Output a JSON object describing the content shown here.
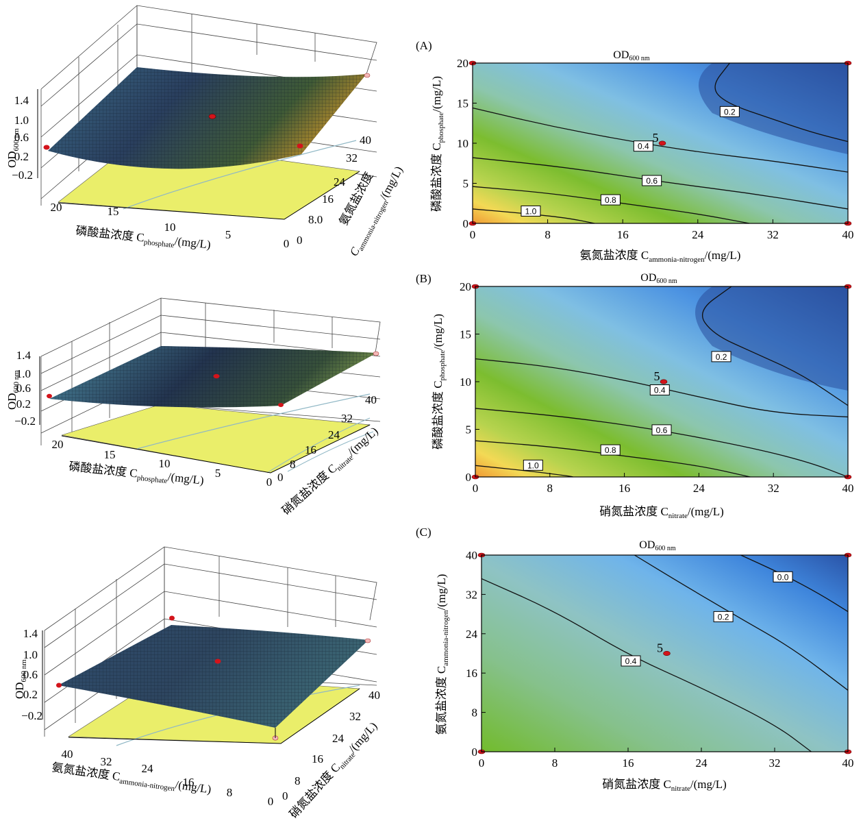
{
  "chart_data": [
    {
      "type": "surface",
      "zlabel_main": "OD",
      "zlabel_sub": "600 nm",
      "z_ticks": [
        "1.4",
        "1.0",
        "0.6",
        "0.2",
        "−0.2"
      ],
      "x_label_main": "磷酸盐浓度 C",
      "x_label_sub": "phosphate",
      "x_label_unit": "/(mg/L)",
      "x_ticks": [
        "20",
        "15",
        "10",
        "5",
        "0"
      ],
      "y_label_main": "氨氮盐浓度",
      "y_label_sub": "ammonia-nitrogen",
      "y_label_unit": "/(mg/L)",
      "y_label_c": "C",
      "y_ticks": [
        "0",
        "8.0",
        "16",
        "24",
        "32",
        "40"
      ]
    },
    {
      "type": "surface",
      "zlabel_main": "OD",
      "zlabel_sub": "600 nm",
      "z_ticks": [
        "1.4",
        "1.0",
        "0.6",
        "0.2",
        "−0.2"
      ],
      "x_label_main": "磷酸盐浓度 C",
      "x_label_sub": "phosphate",
      "x_label_unit": "/(mg/L)",
      "x_ticks": [
        "20",
        "15",
        "10",
        "5",
        "0"
      ],
      "y_label_main": "硝氮盐浓度 C",
      "y_label_sub": "nitrate",
      "y_label_unit": "/(mg/L)",
      "y_ticks": [
        "0",
        "8",
        "16",
        "24",
        "32",
        "40"
      ]
    },
    {
      "type": "surface",
      "zlabel_main": "OD",
      "zlabel_sub": "600 nm",
      "z_ticks": [
        "1.4",
        "1.0",
        "0.6",
        "0.2",
        "−0.2"
      ],
      "x_label_main": "氨氮盐浓度 C",
      "x_label_sub": "ammonia-nitrogen",
      "x_label_unit": "/(mg/L)",
      "x_ticks": [
        "40",
        "32",
        "24",
        "16",
        "8",
        "0"
      ],
      "y_label_main": "硝氮盐浓度 C",
      "y_label_sub": "nitrate",
      "y_label_unit": "/(mg/L)",
      "y_ticks": [
        "0",
        "8",
        "16",
        "24",
        "32",
        "40"
      ]
    },
    {
      "type": "contour",
      "panel": "(A)",
      "title_main": "OD",
      "title_sub": "600 nm",
      "xlabel_main": "氨氮盐浓度 C",
      "xlabel_sub": "ammonia-nitrogen",
      "xlabel_unit": "/(mg/L)",
      "ylabel_main": "磷酸盐浓度 C",
      "ylabel_sub": "phosphate",
      "ylabel_unit": "/(mg/L)",
      "xlim": [
        0,
        40
      ],
      "ylim": [
        0,
        20
      ],
      "x_ticks": [
        "0",
        "8",
        "16",
        "24",
        "32",
        "40"
      ],
      "y_ticks": [
        "0",
        "5",
        "10",
        "15",
        "20"
      ],
      "center_label": "5",
      "center": [
        20,
        10
      ],
      "contours": [
        {
          "label": "1.0",
          "points": [
            [
              0,
              1.8
            ],
            [
              5,
              1.3
            ],
            [
              10,
              0.7
            ],
            [
              13,
              0
            ]
          ],
          "label_at": [
            6.2,
            1.5
          ]
        },
        {
          "label": "0.8",
          "points": [
            [
              0,
              4.6
            ],
            [
              8,
              3.8
            ],
            [
              16,
              2.5
            ],
            [
              24,
              1.2
            ],
            [
              29.5,
              0
            ]
          ],
          "label_at": [
            14.7,
            2.9
          ]
        },
        {
          "label": "0.6",
          "points": [
            [
              0,
              8.2
            ],
            [
              10,
              7.0
            ],
            [
              20,
              5.2
            ],
            [
              30,
              3.7
            ],
            [
              40,
              1.8
            ]
          ],
          "label_at": [
            19.1,
            5.3
          ]
        },
        {
          "label": "0.4",
          "points": [
            [
              0,
              14.4
            ],
            [
              8,
              12.2
            ],
            [
              16,
              10.4
            ],
            [
              24,
              8.9
            ],
            [
              32,
              7.8
            ],
            [
              40,
              6.4
            ]
          ],
          "label_at": [
            18.2,
            9.6
          ]
        },
        {
          "label": "0.2",
          "points": [
            [
              27.4,
              20
            ],
            [
              25.4,
              17
            ],
            [
              27,
              15
            ],
            [
              32,
              13.0
            ],
            [
              36,
              11.4
            ],
            [
              40,
              10.2
            ]
          ],
          "label_at": [
            27.4,
            13.9
          ]
        }
      ]
    },
    {
      "type": "contour",
      "panel": "(B)",
      "title_main": "OD",
      "title_sub": "600 nm",
      "xlabel_main": "硝氮盐浓度 C",
      "xlabel_sub": "nitrate",
      "xlabel_unit": "/(mg/L)",
      "ylabel_main": "磷酸盐浓度 C",
      "ylabel_sub": "phosphate",
      "ylabel_unit": "/(mg/L)",
      "xlim": [
        0,
        40
      ],
      "ylim": [
        0,
        20
      ],
      "x_ticks": [
        "0",
        "8",
        "16",
        "24",
        "32",
        "40"
      ],
      "y_ticks": [
        "0",
        "5",
        "10",
        "15",
        "20"
      ],
      "center_label": "5",
      "center": [
        20,
        10
      ],
      "contours": [
        {
          "label": "1.0",
          "points": [
            [
              0,
              1.2
            ],
            [
              6,
              0.6
            ],
            [
              10,
              0.1
            ],
            [
              10.5,
              0
            ]
          ],
          "label_at": [
            6.2,
            1.2
          ]
        },
        {
          "label": "0.8",
          "points": [
            [
              0,
              3.8
            ],
            [
              8,
              3.2
            ],
            [
              16,
              2.2
            ],
            [
              24,
              1.2
            ],
            [
              29.5,
              0
            ]
          ],
          "label_at": [
            14.5,
            2.8
          ]
        },
        {
          "label": "0.6",
          "points": [
            [
              0,
              7.2
            ],
            [
              10,
              6.3
            ],
            [
              20,
              4.9
            ],
            [
              30,
              3.0
            ],
            [
              36,
              1.5
            ],
            [
              40,
              0
            ]
          ],
          "label_at": [
            20,
            4.9
          ]
        },
        {
          "label": "0.4",
          "points": [
            [
              0,
              12.4
            ],
            [
              8,
              11.6
            ],
            [
              16,
              10.2
            ],
            [
              24,
              8.4
            ],
            [
              32,
              6.7
            ],
            [
              40,
              6.3
            ]
          ],
          "label_at": [
            19.8,
            9.1
          ]
        },
        {
          "label": "0.2",
          "points": [
            [
              27.5,
              20
            ],
            [
              23.8,
              17.4
            ],
            [
              25.5,
              15
            ],
            [
              30,
              13.0
            ],
            [
              35,
              10.8
            ],
            [
              40,
              7.5
            ]
          ],
          "label_at": [
            26.4,
            12.6
          ]
        }
      ]
    },
    {
      "type": "contour",
      "panel": "(C)",
      "title_main": "OD",
      "title_sub": "600 nm",
      "xlabel_main": "硝氮盐浓度 C",
      "xlabel_sub": "nitrate",
      "xlabel_unit": "/(mg/L)",
      "ylabel_main": "氨氮盐浓度 C",
      "ylabel_sub": "ammonia-nitrogen",
      "ylabel_unit": "/(mg/L)",
      "xlim": [
        0,
        40
      ],
      "ylim": [
        0,
        40
      ],
      "x_ticks": [
        "0",
        "8",
        "16",
        "24",
        "32",
        "40"
      ],
      "y_ticks": [
        "0",
        "8",
        "16",
        "24",
        "32",
        "40"
      ],
      "center_label": "5",
      "center": [
        20,
        20
      ],
      "contours": [
        {
          "label": "0.4",
          "points": [
            [
              0,
              35.2
            ],
            [
              8,
              28.6
            ],
            [
              16,
              19.7
            ],
            [
              24,
              13.0
            ],
            [
              32,
              5.6
            ],
            [
              36,
              0
            ]
          ],
          "label_at": [
            16.3,
            18.4
          ]
        },
        {
          "label": "0.2",
          "points": [
            [
              16.7,
              40
            ],
            [
              22,
              34.0
            ],
            [
              28,
              27.4
            ],
            [
              34,
              21.0
            ],
            [
              40,
              12.5
            ]
          ],
          "label_at": [
            26.4,
            27.4
          ]
        },
        {
          "label": "0.0",
          "points": [
            [
              28.3,
              40
            ],
            [
              33,
              36.0
            ],
            [
              37,
              32.0
            ],
            [
              40,
              28.5
            ]
          ],
          "label_at": [
            32.9,
            35.5
          ]
        }
      ]
    }
  ]
}
